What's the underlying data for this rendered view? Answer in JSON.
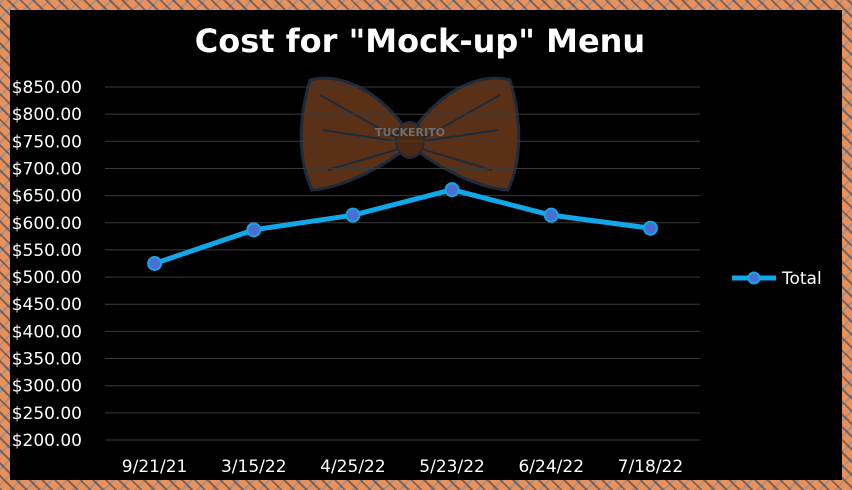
{
  "chart_data": {
    "type": "line",
    "title": "Cost for \"Mock-up\" Menu",
    "xlabel": "",
    "ylabel": "",
    "ylim": [
      200,
      850
    ],
    "ytick_step": 50,
    "ytick_labels": [
      "$200.00",
      "$250.00",
      "$300.00",
      "$350.00",
      "$400.00",
      "$450.00",
      "$500.00",
      "$550.00",
      "$600.00",
      "$650.00",
      "$700.00",
      "$750.00",
      "$800.00",
      "$850.00"
    ],
    "categories": [
      "9/21/21",
      "3/15/22",
      "4/25/22",
      "5/23/22",
      "6/24/22",
      "7/18/22"
    ],
    "series": [
      {
        "name": "Total",
        "values": [
          525,
          587,
          614,
          661,
          614,
          590
        ],
        "color": "#11a7e8"
      }
    ],
    "grid": true,
    "legend": "right"
  },
  "watermark": {
    "text": "TUCKERITO",
    "icon": "bow-tie-icon"
  }
}
